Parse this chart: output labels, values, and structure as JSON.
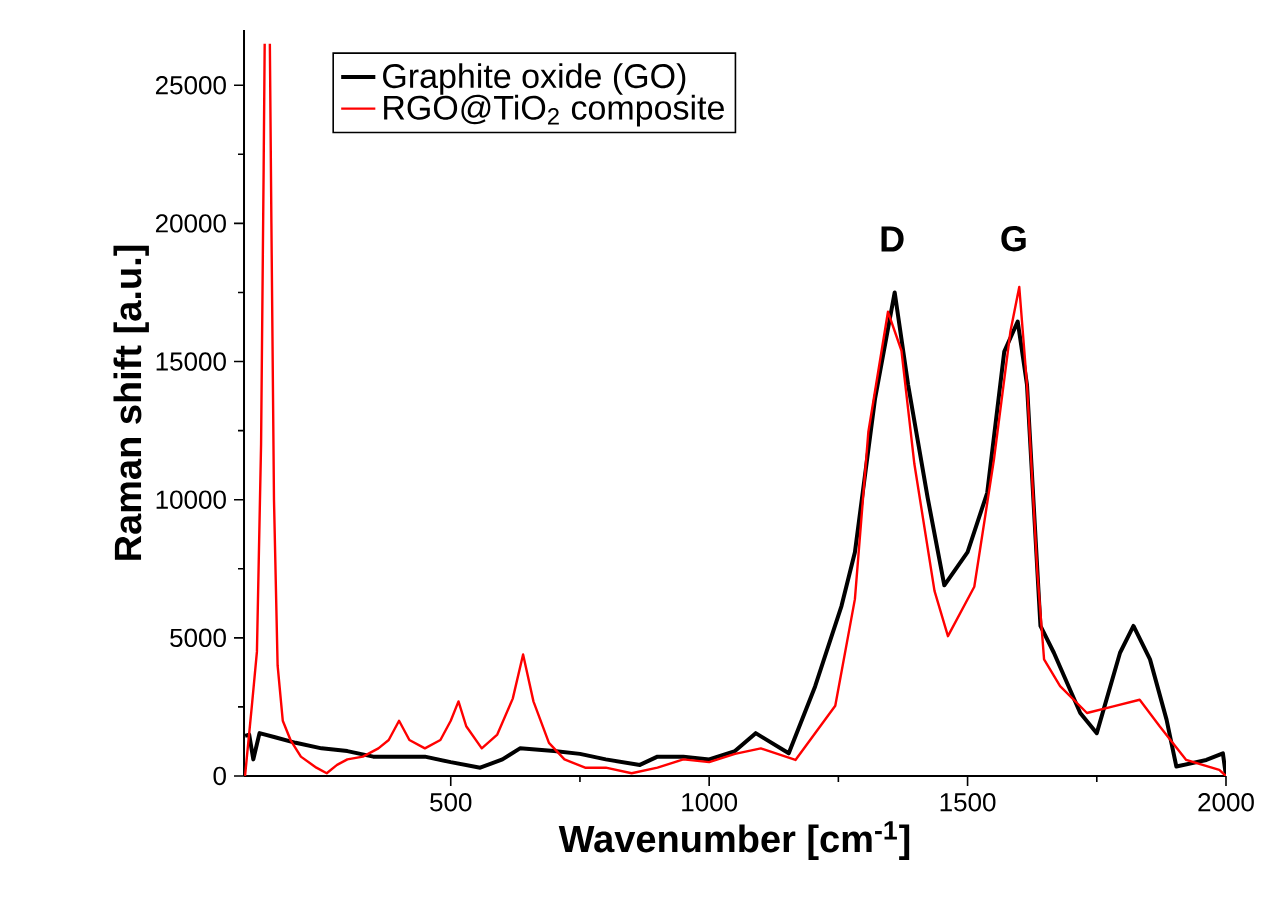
{
  "chart_data": {
    "type": "line",
    "xlabel": "Wavenumber [cm$^{-1}$]",
    "ylabel": "Raman shift [a.u.]",
    "xlim": [
      100,
      2000
    ],
    "xticks": [
      500,
      1000,
      1500,
      2000
    ],
    "ylim": [
      0,
      27000
    ],
    "yticks": [
      0,
      5000,
      10000,
      15000,
      20000,
      25000
    ],
    "legend": "top left",
    "grid": false,
    "marker": "none",
    "line_style": "solid",
    "annotations": [
      "D",
      "G"
    ],
    "series": [
      {
        "name": "Graphite oxide (GO)",
        "color": "#000000",
        "x": [
          102,
          110,
          118,
          130,
          160,
          200,
          250,
          300,
          350,
          400,
          450,
          500,
          557,
          600,
          634,
          700,
          750,
          800,
          866,
          900,
          950,
          1000,
          1050,
          1090,
          1154,
          1205,
          1256,
          1282,
          1321,
          1359,
          1385,
          1423,
          1455,
          1500,
          1538,
          1571,
          1597,
          1615,
          1641,
          1667,
          1718,
          1750,
          1795,
          1821,
          1853,
          1885,
          1904,
          1962,
          1994,
          2000
        ],
        "values": [
          1450,
          1500,
          600,
          1550,
          1400,
          1200,
          1000,
          900,
          700,
          700,
          700,
          500,
          300,
          600,
          1000,
          900,
          800,
          600,
          400,
          700,
          700,
          600,
          900,
          1550,
          820,
          3240,
          6150,
          8100,
          13660,
          17500,
          14150,
          10050,
          6900,
          8100,
          10250,
          15360,
          16450,
          14150,
          5430,
          4460,
          2280,
          1550,
          4460,
          5430,
          4220,
          2040,
          340,
          580,
          820,
          0
        ]
      },
      {
        "name": "RGO@TiO$_{2}$ composite",
        "color": "#ff0000",
        "x": [
          102,
          115,
          125,
          133,
          138,
          140,
          145,
          150,
          153,
          158,
          165,
          175,
          190,
          210,
          240,
          260,
          280,
          300,
          330,
          360,
          380,
          400,
          420,
          450,
          480,
          500,
          515,
          530,
          560,
          590,
          620,
          640,
          660,
          690,
          720,
          760,
          800,
          850,
          900,
          950,
          1000,
          1050,
          1100,
          1167,
          1244,
          1282,
          1308,
          1346,
          1372,
          1397,
          1436,
          1462,
          1513,
          1551,
          1583,
          1600,
          1615,
          1635,
          1648,
          1679,
          1731,
          1782,
          1833,
          1872,
          1923,
          1987,
          2000
        ],
        "values": [
          0,
          2500,
          4500,
          12000,
          22000,
          26500,
          null,
          26500,
          20000,
          10000,
          4000,
          2000,
          1300,
          700,
          300,
          100,
          400,
          600,
          700,
          1000,
          1300,
          2000,
          1300,
          1000,
          1300,
          2000,
          2700,
          1800,
          1000,
          1500,
          2800,
          4400,
          2700,
          1200,
          600,
          300,
          300,
          100,
          300,
          600,
          500,
          800,
          1000,
          580,
          2540,
          6400,
          12450,
          16800,
          15400,
          11300,
          6700,
          5060,
          6850,
          11450,
          16100,
          17700,
          14150,
          7360,
          4220,
          3250,
          2280,
          2520,
          2760,
          1790,
          580,
          220,
          0
        ]
      }
    ]
  }
}
